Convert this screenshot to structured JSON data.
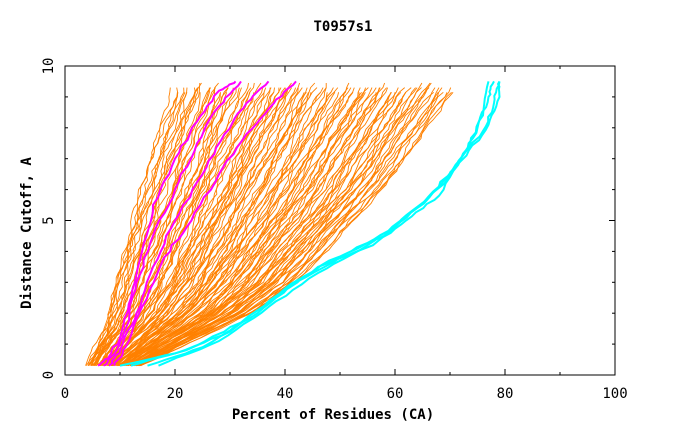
{
  "chart_data": {
    "type": "line",
    "title": "T0957s1",
    "xlabel": "Percent of Residues (CA)",
    "ylabel": "Distance Cutoff, A",
    "xlim": [
      0,
      100
    ],
    "ylim": [
      0,
      10
    ],
    "x_ticks": [
      0,
      20,
      40,
      60,
      80,
      100
    ],
    "y_ticks": [
      0,
      5,
      10
    ],
    "colors": {
      "orange": "#ff8000",
      "magenta": "#ff00ff",
      "cyan": "#00ffff"
    },
    "orange_band": {
      "left_edge": [
        [
          4,
          0.3
        ],
        [
          7,
          1.5
        ],
        [
          9,
          3
        ],
        [
          12,
          5
        ],
        [
          15,
          7
        ],
        [
          18,
          8.5
        ],
        [
          20,
          9.5
        ]
      ],
      "right_edge": [
        [
          14,
          0.3
        ],
        [
          22,
          1
        ],
        [
          34,
          2
        ],
        [
          42,
          3
        ],
        [
          50,
          4.5
        ],
        [
          58,
          6
        ],
        [
          66,
          8
        ],
        [
          72,
          9.5
        ]
      ],
      "count": 120
    },
    "series": [
      {
        "name": "magenta-1",
        "color": "magenta",
        "points": [
          [
            6,
            0.3
          ],
          [
            8,
            0.6
          ],
          [
            10,
            1.2
          ],
          [
            12,
            2.5
          ],
          [
            14,
            4
          ],
          [
            16,
            5.5
          ],
          [
            20,
            7
          ],
          [
            24,
            8.2
          ],
          [
            28,
            9.2
          ],
          [
            31,
            9.5
          ]
        ]
      },
      {
        "name": "magenta-2",
        "color": "magenta",
        "points": [
          [
            7,
            0.3
          ],
          [
            9,
            0.7
          ],
          [
            11,
            1.5
          ],
          [
            13,
            3
          ],
          [
            16,
            4.5
          ],
          [
            20,
            6
          ],
          [
            24,
            7.5
          ],
          [
            28,
            8.7
          ],
          [
            32,
            9.5
          ]
        ]
      },
      {
        "name": "magenta-3",
        "color": "magenta",
        "points": [
          [
            8,
            0.3
          ],
          [
            10,
            0.8
          ],
          [
            13,
            2
          ],
          [
            16,
            3.5
          ],
          [
            20,
            5
          ],
          [
            25,
            6.5
          ],
          [
            29,
            7.8
          ],
          [
            33,
            8.8
          ],
          [
            37,
            9.5
          ]
        ]
      },
      {
        "name": "magenta-4",
        "color": "magenta",
        "points": [
          [
            9,
            0.3
          ],
          [
            11,
            0.9
          ],
          [
            14,
            2.2
          ],
          [
            18,
            3.8
          ],
          [
            23,
            5
          ],
          [
            28,
            6.5
          ],
          [
            33,
            7.8
          ],
          [
            38,
            8.8
          ],
          [
            42,
            9.5
          ]
        ]
      },
      {
        "name": "cyan-1",
        "color": "cyan",
        "points": [
          [
            10,
            0.3
          ],
          [
            20,
            0.7
          ],
          [
            30,
            1.4
          ],
          [
            38,
            2.5
          ],
          [
            46,
            3.5
          ],
          [
            56,
            4.2
          ],
          [
            62,
            5
          ],
          [
            68,
            5.8
          ],
          [
            72,
            7
          ],
          [
            75,
            8
          ],
          [
            77,
            9
          ],
          [
            78,
            9.5
          ]
        ]
      },
      {
        "name": "cyan-2",
        "color": "cyan",
        "points": [
          [
            12,
            0.3
          ],
          [
            22,
            0.8
          ],
          [
            32,
            1.7
          ],
          [
            40,
            2.8
          ],
          [
            48,
            3.7
          ],
          [
            58,
            4.5
          ],
          [
            63,
            5.3
          ],
          [
            69,
            6.2
          ],
          [
            73,
            7.3
          ],
          [
            76,
            8.4
          ],
          [
            77,
            9.5
          ]
        ]
      },
      {
        "name": "cyan-3",
        "color": "cyan",
        "points": [
          [
            15,
            0.3
          ],
          [
            25,
            0.9
          ],
          [
            35,
            2
          ],
          [
            42,
            3
          ],
          [
            52,
            4
          ],
          [
            60,
            4.8
          ],
          [
            66,
            5.7
          ],
          [
            71,
            6.8
          ],
          [
            76,
            7.9
          ],
          [
            78,
            8.8
          ],
          [
            79,
            9.5
          ]
        ]
      },
      {
        "name": "cyan-4",
        "color": "cyan",
        "points": [
          [
            17,
            0.3
          ],
          [
            28,
            1.1
          ],
          [
            37,
            2.2
          ],
          [
            46,
            3.3
          ],
          [
            55,
            4.2
          ],
          [
            62,
            5.1
          ],
          [
            68,
            6.1
          ],
          [
            73,
            7.1
          ],
          [
            77,
            8.1
          ],
          [
            79,
            9
          ],
          [
            79,
            9.5
          ]
        ]
      }
    ]
  }
}
